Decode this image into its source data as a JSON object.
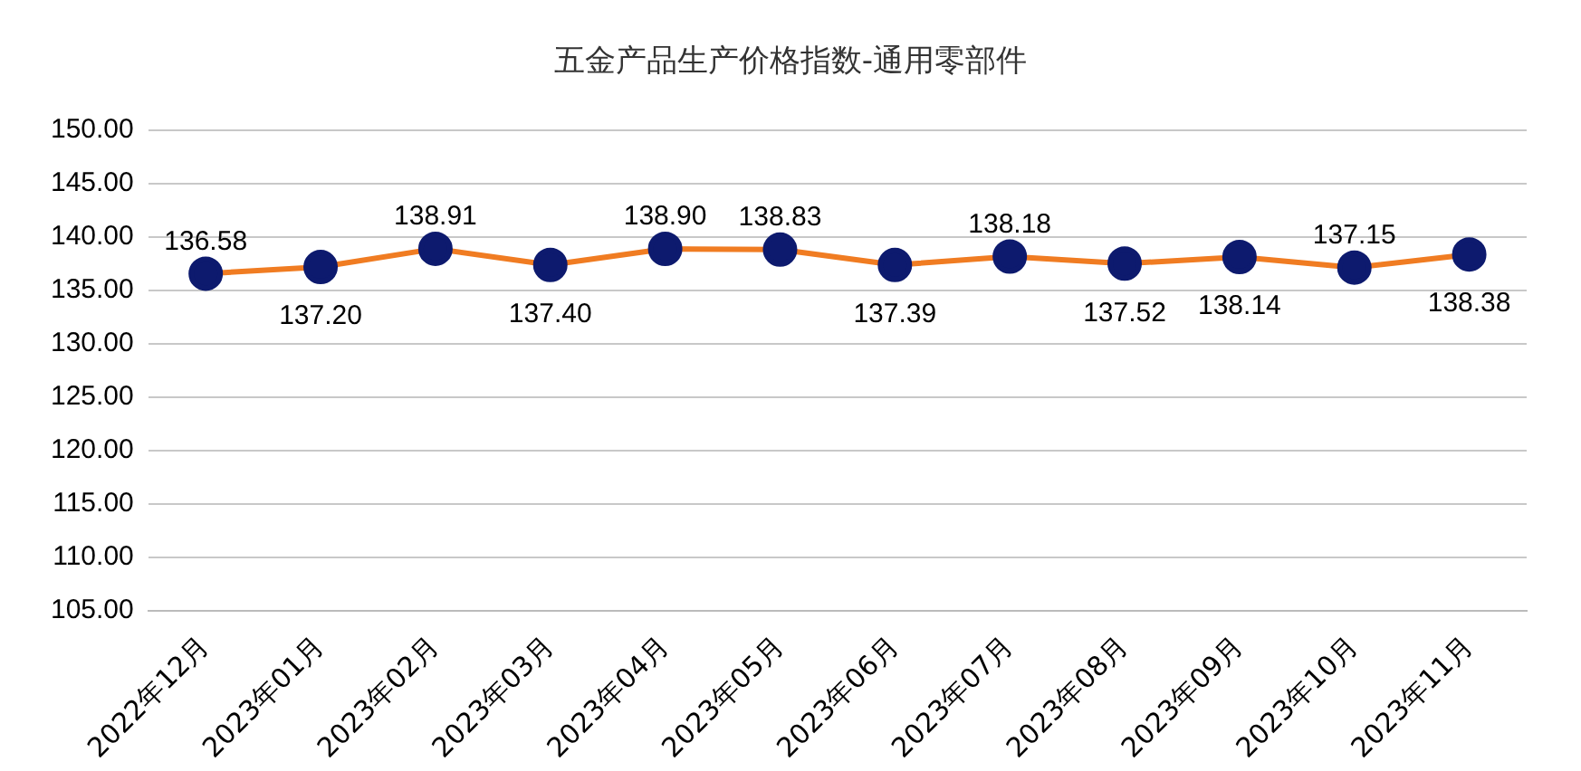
{
  "chart_data": {
    "type": "line",
    "title": "五金产品生产价格指数-通用零部件",
    "categories": [
      "2022年12月",
      "2023年01月",
      "2023年02月",
      "2023年03月",
      "2023年04月",
      "2023年05月",
      "2023年06月",
      "2023年07月",
      "2023年08月",
      "2023年09月",
      "2023年10月",
      "2023年11月"
    ],
    "series": [
      {
        "color": "#f07c22",
        "values": [
          136.58,
          137.2,
          138.91,
          137.4,
          138.9,
          138.83,
          137.39,
          138.18,
          137.52,
          138.14,
          137.15,
          138.38
        ],
        "value_labels": [
          "136.58",
          "137.20",
          "138.91",
          "137.40",
          "138.90",
          "138.83",
          "137.39",
          "138.18",
          "137.52",
          "138.14",
          "137.15",
          "138.38"
        ]
      }
    ],
    "ylim": [
      105,
      150
    ],
    "yticks": [
      {
        "value": 105,
        "label": "105.00"
      },
      {
        "value": 110,
        "label": "110.00"
      },
      {
        "value": 115,
        "label": "115.00"
      },
      {
        "value": 120,
        "label": "120.00"
      },
      {
        "value": 125,
        "label": "125.00"
      },
      {
        "value": 130,
        "label": "130.00"
      },
      {
        "value": 135,
        "label": "135.00"
      },
      {
        "value": 140,
        "label": "140.00"
      },
      {
        "value": 145,
        "label": "145.00"
      },
      {
        "value": 150,
        "label": "150.00"
      }
    ],
    "grid": "y",
    "legend": false,
    "marker": "circle",
    "line_style": "solid"
  }
}
